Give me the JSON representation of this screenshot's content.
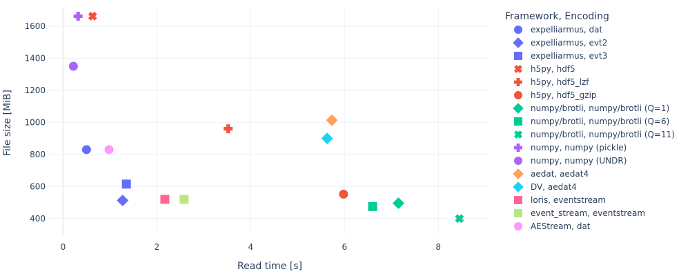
{
  "chart_data": {
    "type": "scatter",
    "xlabel": "Read time [s]",
    "ylabel": "File size [MiB]",
    "xlim": [
      -0.3,
      9.1
    ],
    "ylim": [
      300,
      1720
    ],
    "x_ticks": [
      0,
      2,
      4,
      6,
      8
    ],
    "y_ticks": [
      400,
      600,
      800,
      1000,
      1200,
      1400,
      1600
    ],
    "grid": true,
    "legend_title": "Framework, Encoding",
    "legend_position": "right",
    "series": [
      {
        "name": "expelliarmus, dat",
        "color": "#636efa",
        "symbol": "circle",
        "x": [
          0.5
        ],
        "y": [
          830
        ]
      },
      {
        "name": "expelliarmus, evt2",
        "color": "#636efa",
        "symbol": "diamond",
        "x": [
          1.27
        ],
        "y": [
          513
        ]
      },
      {
        "name": "expelliarmus, evt3",
        "color": "#636efa",
        "symbol": "square",
        "x": [
          1.35
        ],
        "y": [
          615
        ]
      },
      {
        "name": "h5py, hdf5",
        "color": "#ef553b",
        "symbol": "x",
        "x": [
          0.63
        ],
        "y": [
          1662
        ]
      },
      {
        "name": "h5py, hdf5_lzf",
        "color": "#ef553b",
        "symbol": "cross",
        "x": [
          3.52
        ],
        "y": [
          960
        ]
      },
      {
        "name": "h5py, hdf5_gzip",
        "color": "#ef553b",
        "symbol": "circle",
        "x": [
          5.98
        ],
        "y": [
          552
        ]
      },
      {
        "name": "numpy/brotli, numpy/brotli (Q=1)",
        "color": "#00cc96",
        "symbol": "diamond",
        "x": [
          7.15
        ],
        "y": [
          496
        ]
      },
      {
        "name": "numpy/brotli, numpy/brotli (Q=6)",
        "color": "#00cc96",
        "symbol": "square",
        "x": [
          6.6
        ],
        "y": [
          475
        ]
      },
      {
        "name": "numpy/brotli, numpy/brotli (Q=11)",
        "color": "#00cc96",
        "symbol": "x",
        "x": [
          8.45
        ],
        "y": [
          400
        ]
      },
      {
        "name": "numpy, numpy (pickle)",
        "color": "#ab63fa",
        "symbol": "cross",
        "x": [
          0.32
        ],
        "y": [
          1662
        ]
      },
      {
        "name": "numpy, numpy (UNDR)",
        "color": "#ab63fa",
        "symbol": "circle",
        "x": [
          0.22
        ],
        "y": [
          1350
        ]
      },
      {
        "name": "aedat, aedat4",
        "color": "#ffa15a",
        "symbol": "diamond",
        "x": [
          5.73
        ],
        "y": [
          1013
        ]
      },
      {
        "name": "DV, aedat4",
        "color": "#19d3f3",
        "symbol": "diamond",
        "x": [
          5.63
        ],
        "y": [
          900
        ]
      },
      {
        "name": "loris, eventstream",
        "color": "#ff6692",
        "symbol": "square",
        "x": [
          2.17
        ],
        "y": [
          520
        ]
      },
      {
        "name": "event_stream, eventstream",
        "color": "#b6e880",
        "symbol": "square",
        "x": [
          2.58
        ],
        "y": [
          520
        ]
      },
      {
        "name": "AEStream, dat",
        "color": "#ff97ff",
        "symbol": "circle",
        "x": [
          0.98
        ],
        "y": [
          830
        ]
      }
    ]
  }
}
